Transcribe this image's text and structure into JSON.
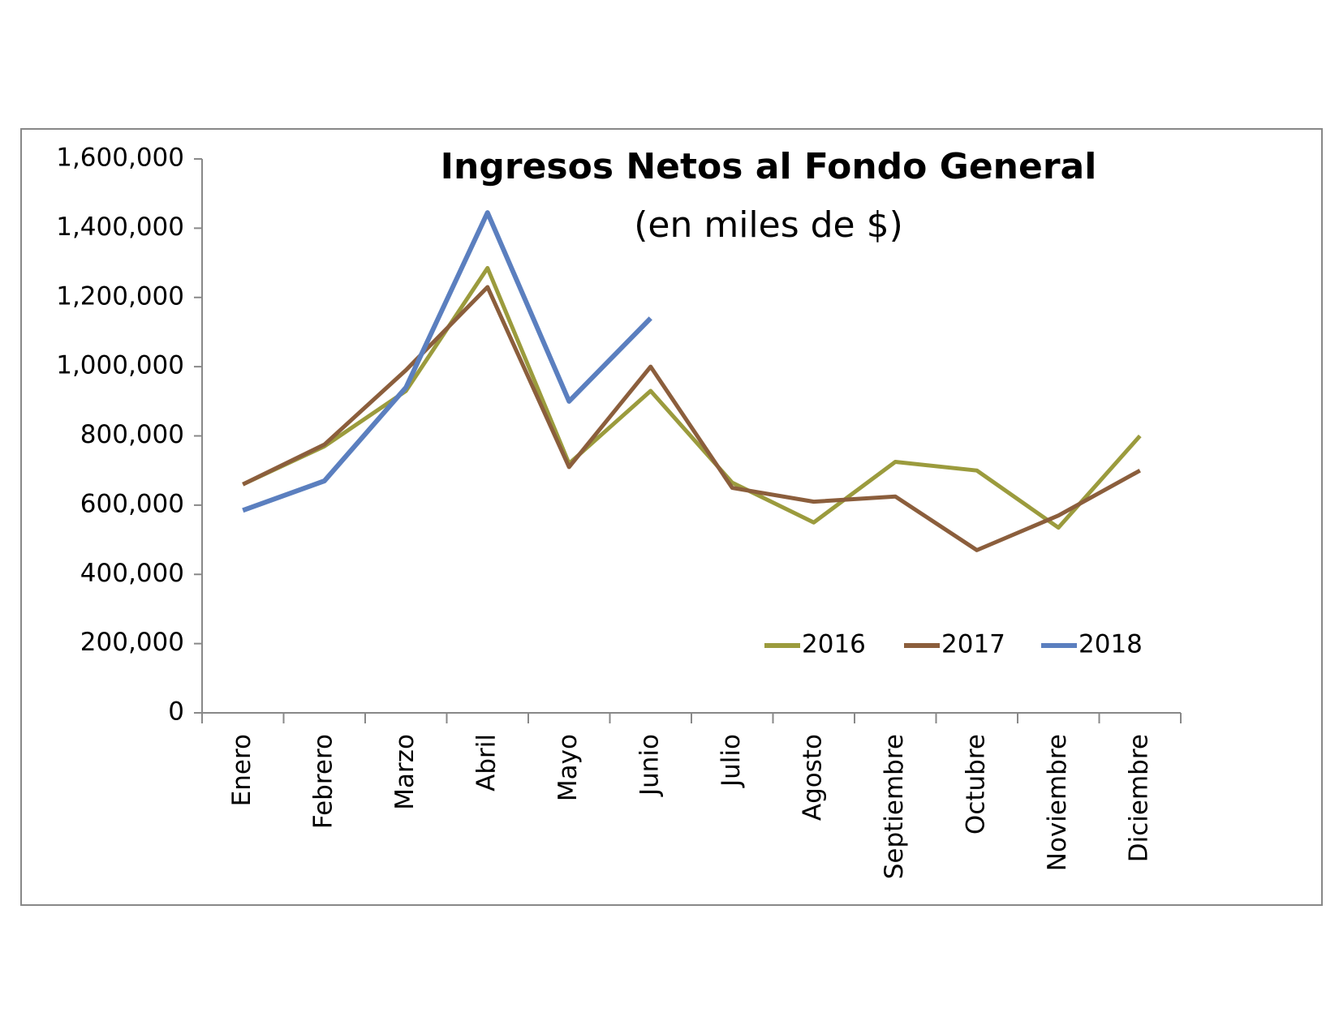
{
  "chart_data": {
    "type": "line",
    "title": "Ingresos Netos al Fondo General",
    "subtitle": "(en miles de $)",
    "categories": [
      "Enero",
      "Febrero",
      "Marzo",
      "Abril",
      "Mayo",
      "Junio",
      "Julio",
      "Agosto",
      "Septiembre",
      "Octubre",
      "Noviembre",
      "Diciembre"
    ],
    "series": [
      {
        "name": "2016",
        "color": "#9b9b3d",
        "values": [
          660000,
          770000,
          930000,
          1285000,
          720000,
          930000,
          665000,
          550000,
          725000,
          700000,
          535000,
          800000
        ]
      },
      {
        "name": "2017",
        "color": "#8b5e3c",
        "values": [
          660000,
          775000,
          990000,
          1230000,
          710000,
          1000000,
          650000,
          610000,
          625000,
          470000,
          570000,
          700000
        ]
      },
      {
        "name": "2018",
        "color": "#5b7fbf",
        "values": [
          585000,
          670000,
          940000,
          1445000,
          900000,
          1140000,
          null,
          null,
          null,
          null,
          null,
          null
        ]
      }
    ],
    "ylim": [
      0,
      1600000
    ],
    "yticks": [
      0,
      {
        "value": 200000,
        "label": "200,000"
      },
      {
        "value": 400000,
        "label": "400,000"
      },
      {
        "value": 600000,
        "label": "600,000"
      },
      {
        "value": 800000,
        "label": "800,000"
      },
      {
        "value": 1000000,
        "label": "1,000,000"
      },
      {
        "value": 1200000,
        "label": "1,200,000"
      },
      {
        "value": 1400000,
        "label": "1,400,000"
      },
      {
        "value": 1600000,
        "label": "1,600,000"
      }
    ],
    "legend": "lower right"
  }
}
